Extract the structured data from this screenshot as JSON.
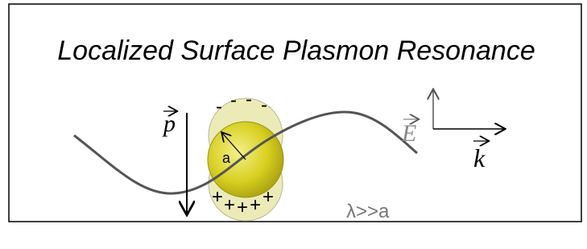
{
  "title": "Localized Surface Plasmon Resonance",
  "labels": {
    "dipole": "p",
    "field": "E",
    "wavevector": "k",
    "radius": "a",
    "condition": "λ>>a"
  },
  "charges": {
    "negative": [
      "-",
      "-",
      "-",
      "-"
    ],
    "positive": [
      "+",
      "+",
      "+",
      "+",
      "+"
    ]
  }
}
